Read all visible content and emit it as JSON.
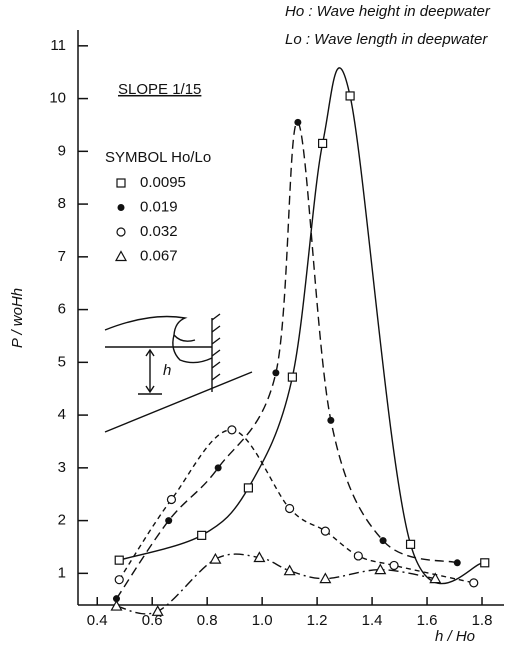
{
  "chart_data": {
    "type": "line",
    "notes": [
      "Ho : Wave height in deepwater",
      "Lo : Wave length in deepwater"
    ],
    "annotation": "SLOPE 1/15",
    "legend_title": "SYMBOL Ho/Lo",
    "inset_label": "h",
    "x_label": "h / Ho",
    "y_label": "P / woHh",
    "xlim": [
      0.33,
      1.88
    ],
    "ylim": [
      0.4,
      11.3
    ],
    "xticks": [
      0.4,
      0.6,
      0.8,
      {
        "value": 1,
        "label": "1.0"
      },
      1.2,
      1.4,
      1.6,
      1.8
    ],
    "yticks": [
      1,
      2,
      3,
      4,
      5,
      6,
      7,
      8,
      9,
      10,
      11
    ],
    "series": [
      {
        "name": "0.0095",
        "color": "#111111",
        "marker": "square",
        "line_style": "solid",
        "x": [
          0.48,
          0.78,
          0.95,
          1.11,
          1.22,
          1.32,
          1.54,
          1.81
        ],
        "values": [
          1.25,
          1.72,
          2.62,
          4.72,
          9.15,
          10.05,
          1.55,
          1.2
        ]
      },
      {
        "name": "0.019",
        "color": "#111111",
        "marker": "filled-circle",
        "line_style": "dashed",
        "x": [
          0.47,
          0.66,
          0.84,
          1.05,
          1.13,
          1.25,
          1.44,
          1.71
        ],
        "values": [
          0.52,
          2.0,
          3.0,
          4.8,
          9.55,
          3.9,
          1.62,
          1.2
        ]
      },
      {
        "name": "0.032",
        "color": "#111111",
        "marker": "circle",
        "line_style": "short-dashed",
        "x": [
          0.48,
          0.67,
          0.89,
          1.1,
          1.23,
          1.35,
          1.48,
          1.77
        ],
        "values": [
          0.88,
          2.4,
          3.72,
          2.23,
          1.8,
          1.33,
          1.15,
          0.82
        ]
      },
      {
        "name": "0.067",
        "color": "#111111",
        "marker": "triangle",
        "line_style": "dash-dot",
        "x": [
          0.47,
          0.62,
          0.83,
          0.99,
          1.1,
          1.23,
          1.43,
          1.63
        ],
        "values": [
          0.38,
          0.28,
          1.27,
          1.3,
          1.05,
          0.9,
          1.07,
          0.9
        ]
      }
    ]
  }
}
